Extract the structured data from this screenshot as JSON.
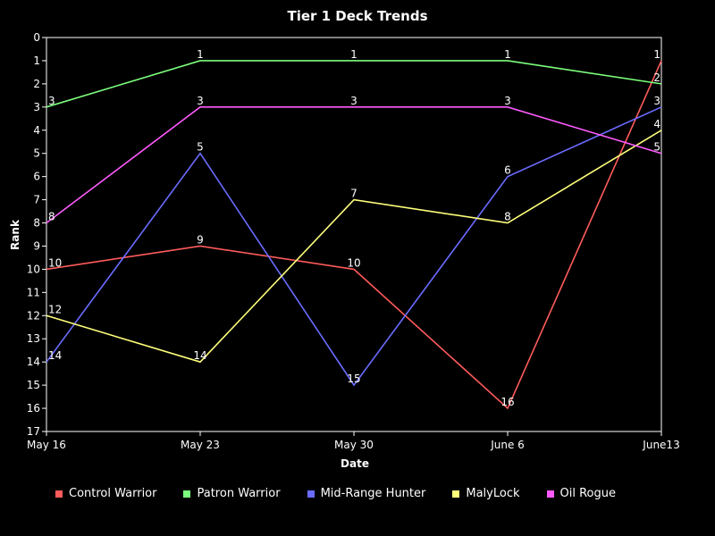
{
  "chart_data": {
    "type": "line",
    "title": "Tier 1 Deck Trends",
    "xlabel": "Date",
    "ylabel": "Rank",
    "categories": [
      "May 16",
      "May 23",
      "May 30",
      "June 6",
      "June13"
    ],
    "ylim": [
      0,
      17
    ],
    "y_inverted": true,
    "y_ticks": [
      0,
      1,
      2,
      3,
      4,
      5,
      6,
      7,
      8,
      9,
      10,
      11,
      12,
      13,
      14,
      15,
      16,
      17
    ],
    "grid": false,
    "legend_position": "bottom-left",
    "series": [
      {
        "name": "Control Warrior",
        "color": "#ff5b5b",
        "values": [
          10,
          9,
          10,
          16,
          1
        ],
        "labels": [
          "10",
          "9",
          "10",
          "16",
          "1"
        ]
      },
      {
        "name": "Patron Warrior",
        "color": "#7cff7c",
        "values": [
          3,
          1,
          1,
          1,
          2
        ],
        "labels": [
          "3",
          "1",
          "1",
          "1",
          "2"
        ]
      },
      {
        "name": "Mid-Range Hunter",
        "color": "#6b6bff",
        "values": [
          14,
          5,
          15,
          6,
          3
        ],
        "labels": [
          "14",
          "5",
          "15",
          "6",
          "3"
        ]
      },
      {
        "name": "MalyLock",
        "color": "#ffff7c",
        "values": [
          12,
          14,
          7,
          8,
          4
        ],
        "labels": [
          "12",
          "14",
          "7",
          "8",
          "4"
        ]
      },
      {
        "name": "Oil Rogue",
        "color": "#ff5bff",
        "values": [
          8,
          3,
          3,
          3,
          5
        ],
        "labels": [
          "8",
          "3",
          "3",
          "3",
          "5"
        ]
      }
    ]
  }
}
